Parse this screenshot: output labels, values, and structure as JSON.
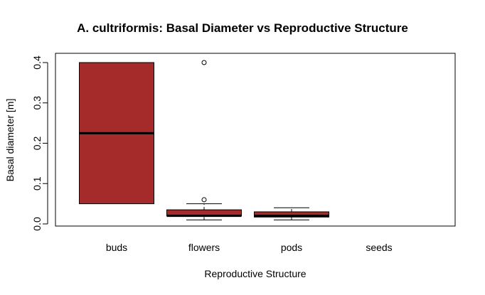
{
  "chart_data": {
    "type": "boxplot",
    "title": "A. cultriformis: Basal Diameter vs Reproductive Structure",
    "xlabel": "Reproductive Structure",
    "ylabel": "Basal diameter [m]",
    "ylim": [
      0.0,
      0.4
    ],
    "yticks": [
      "0.0",
      "0.1",
      "0.2",
      "0.3",
      "0.4"
    ],
    "grid": false,
    "box_color": "#A52A2A",
    "categories": [
      "buds",
      "flowers",
      "pods",
      "seeds"
    ],
    "boxes": [
      {
        "category": "buds",
        "whisker_low": 0.05,
        "q1": 0.05,
        "median": 0.225,
        "q3": 0.4,
        "whisker_high": 0.4,
        "outliers": []
      },
      {
        "category": "flowers",
        "whisker_low": 0.01,
        "q1": 0.02,
        "median": 0.02,
        "q3": 0.035,
        "whisker_high": 0.05,
        "outliers": [
          0.06,
          0.4
        ]
      },
      {
        "category": "pods",
        "whisker_low": 0.01,
        "q1": 0.017,
        "median": 0.02,
        "q3": 0.03,
        "whisker_high": 0.04,
        "outliers": []
      },
      {
        "category": "seeds",
        "whisker_low": null,
        "q1": null,
        "median": null,
        "q3": null,
        "whisker_high": null,
        "outliers": []
      }
    ]
  }
}
